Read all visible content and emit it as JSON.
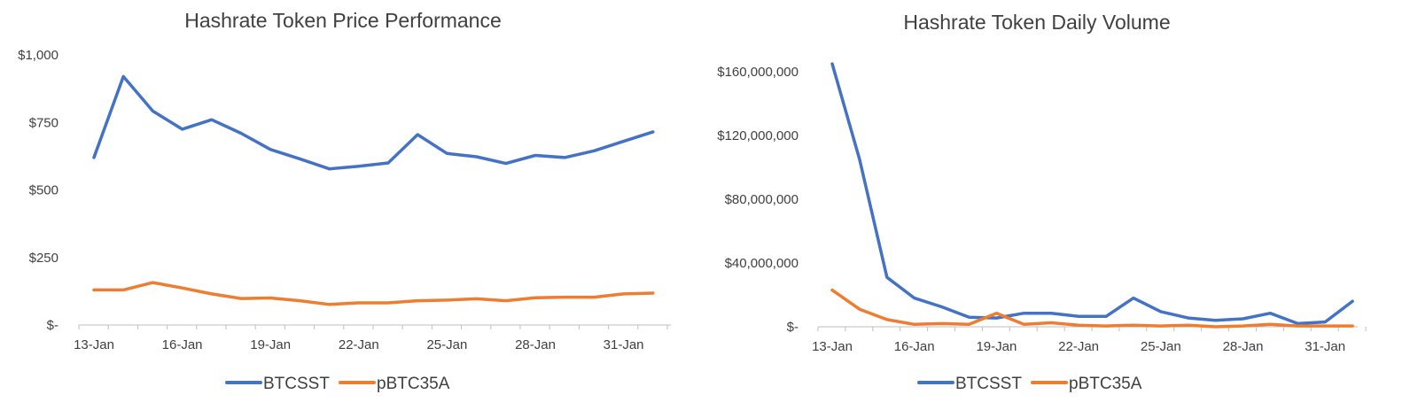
{
  "chart_data": [
    {
      "type": "line",
      "title": "Hashrate Token Price Performance",
      "xlabel": "",
      "ylabel": "",
      "x": [
        "13-Jan",
        "14-Jan",
        "15-Jan",
        "16-Jan",
        "17-Jan",
        "18-Jan",
        "19-Jan",
        "20-Jan",
        "21-Jan",
        "22-Jan",
        "23-Jan",
        "24-Jan",
        "25-Jan",
        "26-Jan",
        "27-Jan",
        "28-Jan",
        "29-Jan",
        "30-Jan",
        "31-Jan",
        "1-Feb"
      ],
      "x_tick_labels": [
        "13-Jan",
        "16-Jan",
        "19-Jan",
        "22-Jan",
        "25-Jan",
        "28-Jan",
        "31-Jan"
      ],
      "ylim": [
        0,
        1000
      ],
      "y_ticks": [
        0,
        250,
        500,
        750,
        1000
      ],
      "y_tick_labels": [
        "$-",
        "$250",
        "$500",
        "$750",
        "$1,000"
      ],
      "grid": false,
      "legend": "bottom",
      "series": [
        {
          "name": "BTCSST",
          "color": "#4472C4",
          "values": [
            620,
            920,
            792,
            725,
            760,
            710,
            650,
            615,
            578,
            588,
            600,
            705,
            635,
            623,
            598,
            628,
            620,
            645,
            680,
            715
          ]
        },
        {
          "name": "pBTC35A",
          "color": "#ED7D31",
          "values": [
            130,
            130,
            157,
            137,
            115,
            98,
            100,
            90,
            76,
            82,
            82,
            90,
            92,
            97,
            90,
            101,
            103,
            103,
            115,
            118
          ]
        }
      ]
    },
    {
      "type": "line",
      "title": "Hashrate Token Daily Volume",
      "xlabel": "",
      "ylabel": "",
      "x": [
        "13-Jan",
        "14-Jan",
        "15-Jan",
        "16-Jan",
        "17-Jan",
        "18-Jan",
        "19-Jan",
        "20-Jan",
        "21-Jan",
        "22-Jan",
        "23-Jan",
        "24-Jan",
        "25-Jan",
        "26-Jan",
        "27-Jan",
        "28-Jan",
        "29-Jan",
        "30-Jan",
        "31-Jan",
        "1-Feb"
      ],
      "x_tick_labels": [
        "13-Jan",
        "16-Jan",
        "19-Jan",
        "22-Jan",
        "25-Jan",
        "28-Jan",
        "31-Jan"
      ],
      "ylim": [
        0,
        160000000
      ],
      "y_ticks": [
        0,
        40000000,
        80000000,
        120000000,
        160000000
      ],
      "y_tick_labels": [
        "$-",
        "$40,000,000",
        "$80,000,000",
        "$120,000,000",
        "$160,000,000"
      ],
      "grid": false,
      "legend": "bottom",
      "series": [
        {
          "name": "BTCSST",
          "color": "#4472C4",
          "values": [
            165000000,
            105000000,
            31000000,
            18000000,
            12500000,
            6000000,
            5500000,
            8500000,
            8500000,
            6500000,
            6500000,
            18000000,
            9500000,
            5500000,
            4000000,
            5000000,
            8500000,
            2000000,
            3000000,
            16000000
          ]
        },
        {
          "name": "pBTC35A",
          "color": "#ED7D31",
          "values": [
            23000000,
            11000000,
            4500000,
            1500000,
            2000000,
            1500000,
            8500000,
            1500000,
            2500000,
            1000000,
            500000,
            1000000,
            500000,
            1000000,
            0,
            500000,
            1500000,
            500000,
            500000,
            500000
          ]
        }
      ]
    }
  ]
}
